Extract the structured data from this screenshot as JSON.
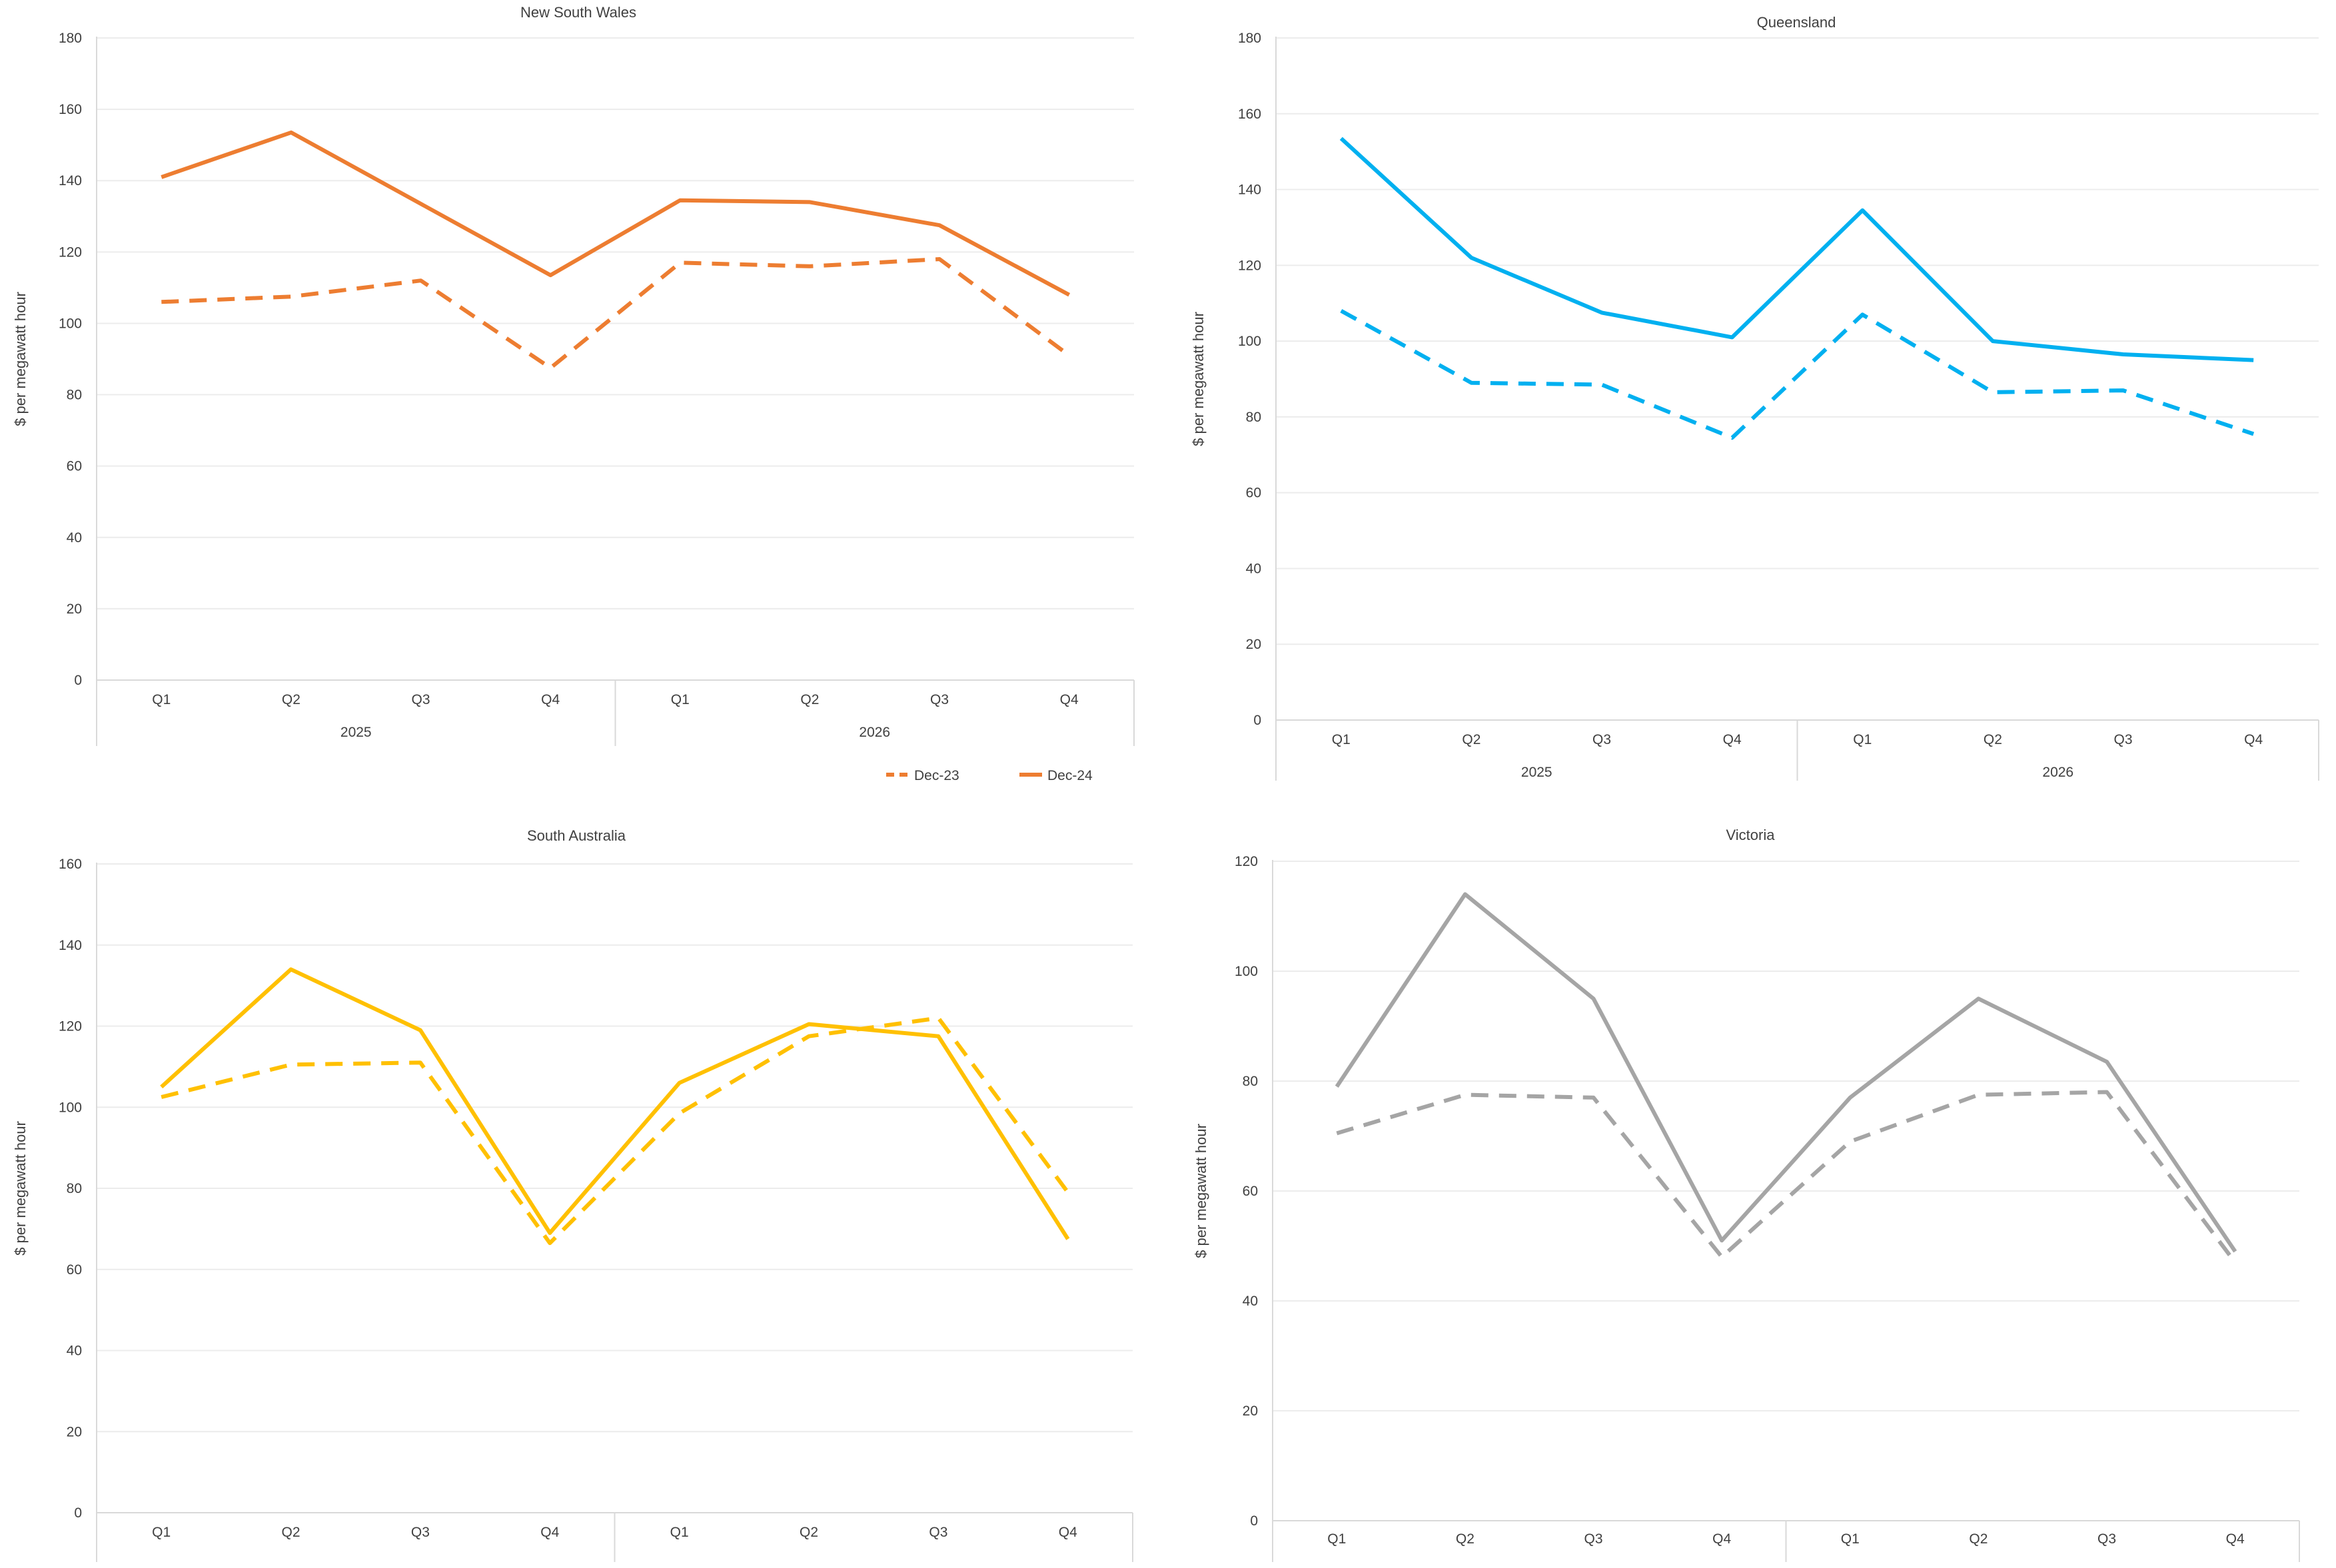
{
  "legend": {
    "items": [
      {
        "label": "Dec-23",
        "dash": "dashed"
      },
      {
        "label": "Dec-24",
        "dash": "solid"
      }
    ]
  },
  "chart_data": [
    {
      "type": "line",
      "title": "New South Wales",
      "ylabel": "$ per megawatt hour",
      "xlabel": "",
      "ylim": [
        0,
        180
      ],
      "yticks": [
        0,
        20,
        40,
        60,
        80,
        100,
        120,
        140,
        160,
        180
      ],
      "categories": [
        "Q1",
        "Q2",
        "Q3",
        "Q4",
        "Q1",
        "Q2",
        "Q3",
        "Q4"
      ],
      "groups": [
        {
          "label": "2025",
          "span": 4
        },
        {
          "label": "2026",
          "span": 4
        }
      ],
      "color": "#ed7d31",
      "grid": true,
      "legend": "bottom-right",
      "series": [
        {
          "name": "Dec-23",
          "dash": "dashed",
          "values": [
            106,
            107.5,
            112,
            87.5,
            117,
            116,
            118,
            91
          ]
        },
        {
          "name": "Dec-24",
          "dash": "solid",
          "values": [
            141,
            153.5,
            133.5,
            113.5,
            134.5,
            134,
            127.5,
            108
          ]
        }
      ]
    },
    {
      "type": "line",
      "title": "Queensland",
      "ylabel": "$ per megawatt hour",
      "xlabel": "",
      "ylim": [
        0,
        180
      ],
      "yticks": [
        0,
        20,
        40,
        60,
        80,
        100,
        120,
        140,
        160,
        180
      ],
      "categories": [
        "Q1",
        "Q2",
        "Q3",
        "Q4",
        "Q1",
        "Q2",
        "Q3",
        "Q4"
      ],
      "groups": [
        {
          "label": "2025",
          "span": 4
        },
        {
          "label": "2026",
          "span": 4
        }
      ],
      "color": "#00b0f0",
      "grid": true,
      "series": [
        {
          "name": "Dec-23",
          "dash": "dashed",
          "values": [
            108,
            89,
            88.5,
            74.5,
            107,
            86.5,
            87,
            75.5
          ]
        },
        {
          "name": "Dec-24",
          "dash": "solid",
          "values": [
            153.5,
            122,
            107.5,
            101,
            134.5,
            100,
            96.5,
            95
          ]
        }
      ]
    },
    {
      "type": "line",
      "title": "South Australia",
      "ylabel": "$ per megawatt hour",
      "xlabel": "",
      "ylim": [
        0,
        160
      ],
      "yticks": [
        0,
        20,
        40,
        60,
        80,
        100,
        120,
        140,
        160
      ],
      "categories": [
        "Q1",
        "Q2",
        "Q3",
        "Q4",
        "Q1",
        "Q2",
        "Q3",
        "Q4"
      ],
      "groups": [
        {
          "label": "",
          "span": 4
        },
        {
          "label": "",
          "span": 4
        }
      ],
      "color": "#ffc000",
      "grid": true,
      "series": [
        {
          "name": "Dec-23",
          "dash": "dashed",
          "values": [
            102.5,
            110.5,
            111,
            66.5,
            98.5,
            117.5,
            122,
            79
          ]
        },
        {
          "name": "Dec-24",
          "dash": "solid",
          "values": [
            105,
            134,
            119,
            69,
            106,
            120.5,
            117.5,
            67.5
          ]
        }
      ]
    },
    {
      "type": "line",
      "title": "Victoria",
      "ylabel": "$ per megawatt hour",
      "xlabel": "",
      "ylim": [
        0,
        120
      ],
      "yticks": [
        0,
        20,
        40,
        60,
        80,
        100,
        120
      ],
      "categories": [
        "Q1",
        "Q2",
        "Q3",
        "Q4",
        "Q1",
        "Q2",
        "Q3",
        "Q4"
      ],
      "groups": [
        {
          "label": "",
          "span": 4
        },
        {
          "label": "",
          "span": 4
        }
      ],
      "color": "#a5a5a5",
      "grid": true,
      "series": [
        {
          "name": "Dec-23",
          "dash": "dashed",
          "values": [
            70.5,
            77.5,
            77,
            48,
            69,
            77.5,
            78,
            47
          ]
        },
        {
          "name": "Dec-24",
          "dash": "solid",
          "values": [
            79,
            114,
            95,
            51,
            77,
            95,
            83.5,
            49
          ]
        }
      ]
    }
  ]
}
